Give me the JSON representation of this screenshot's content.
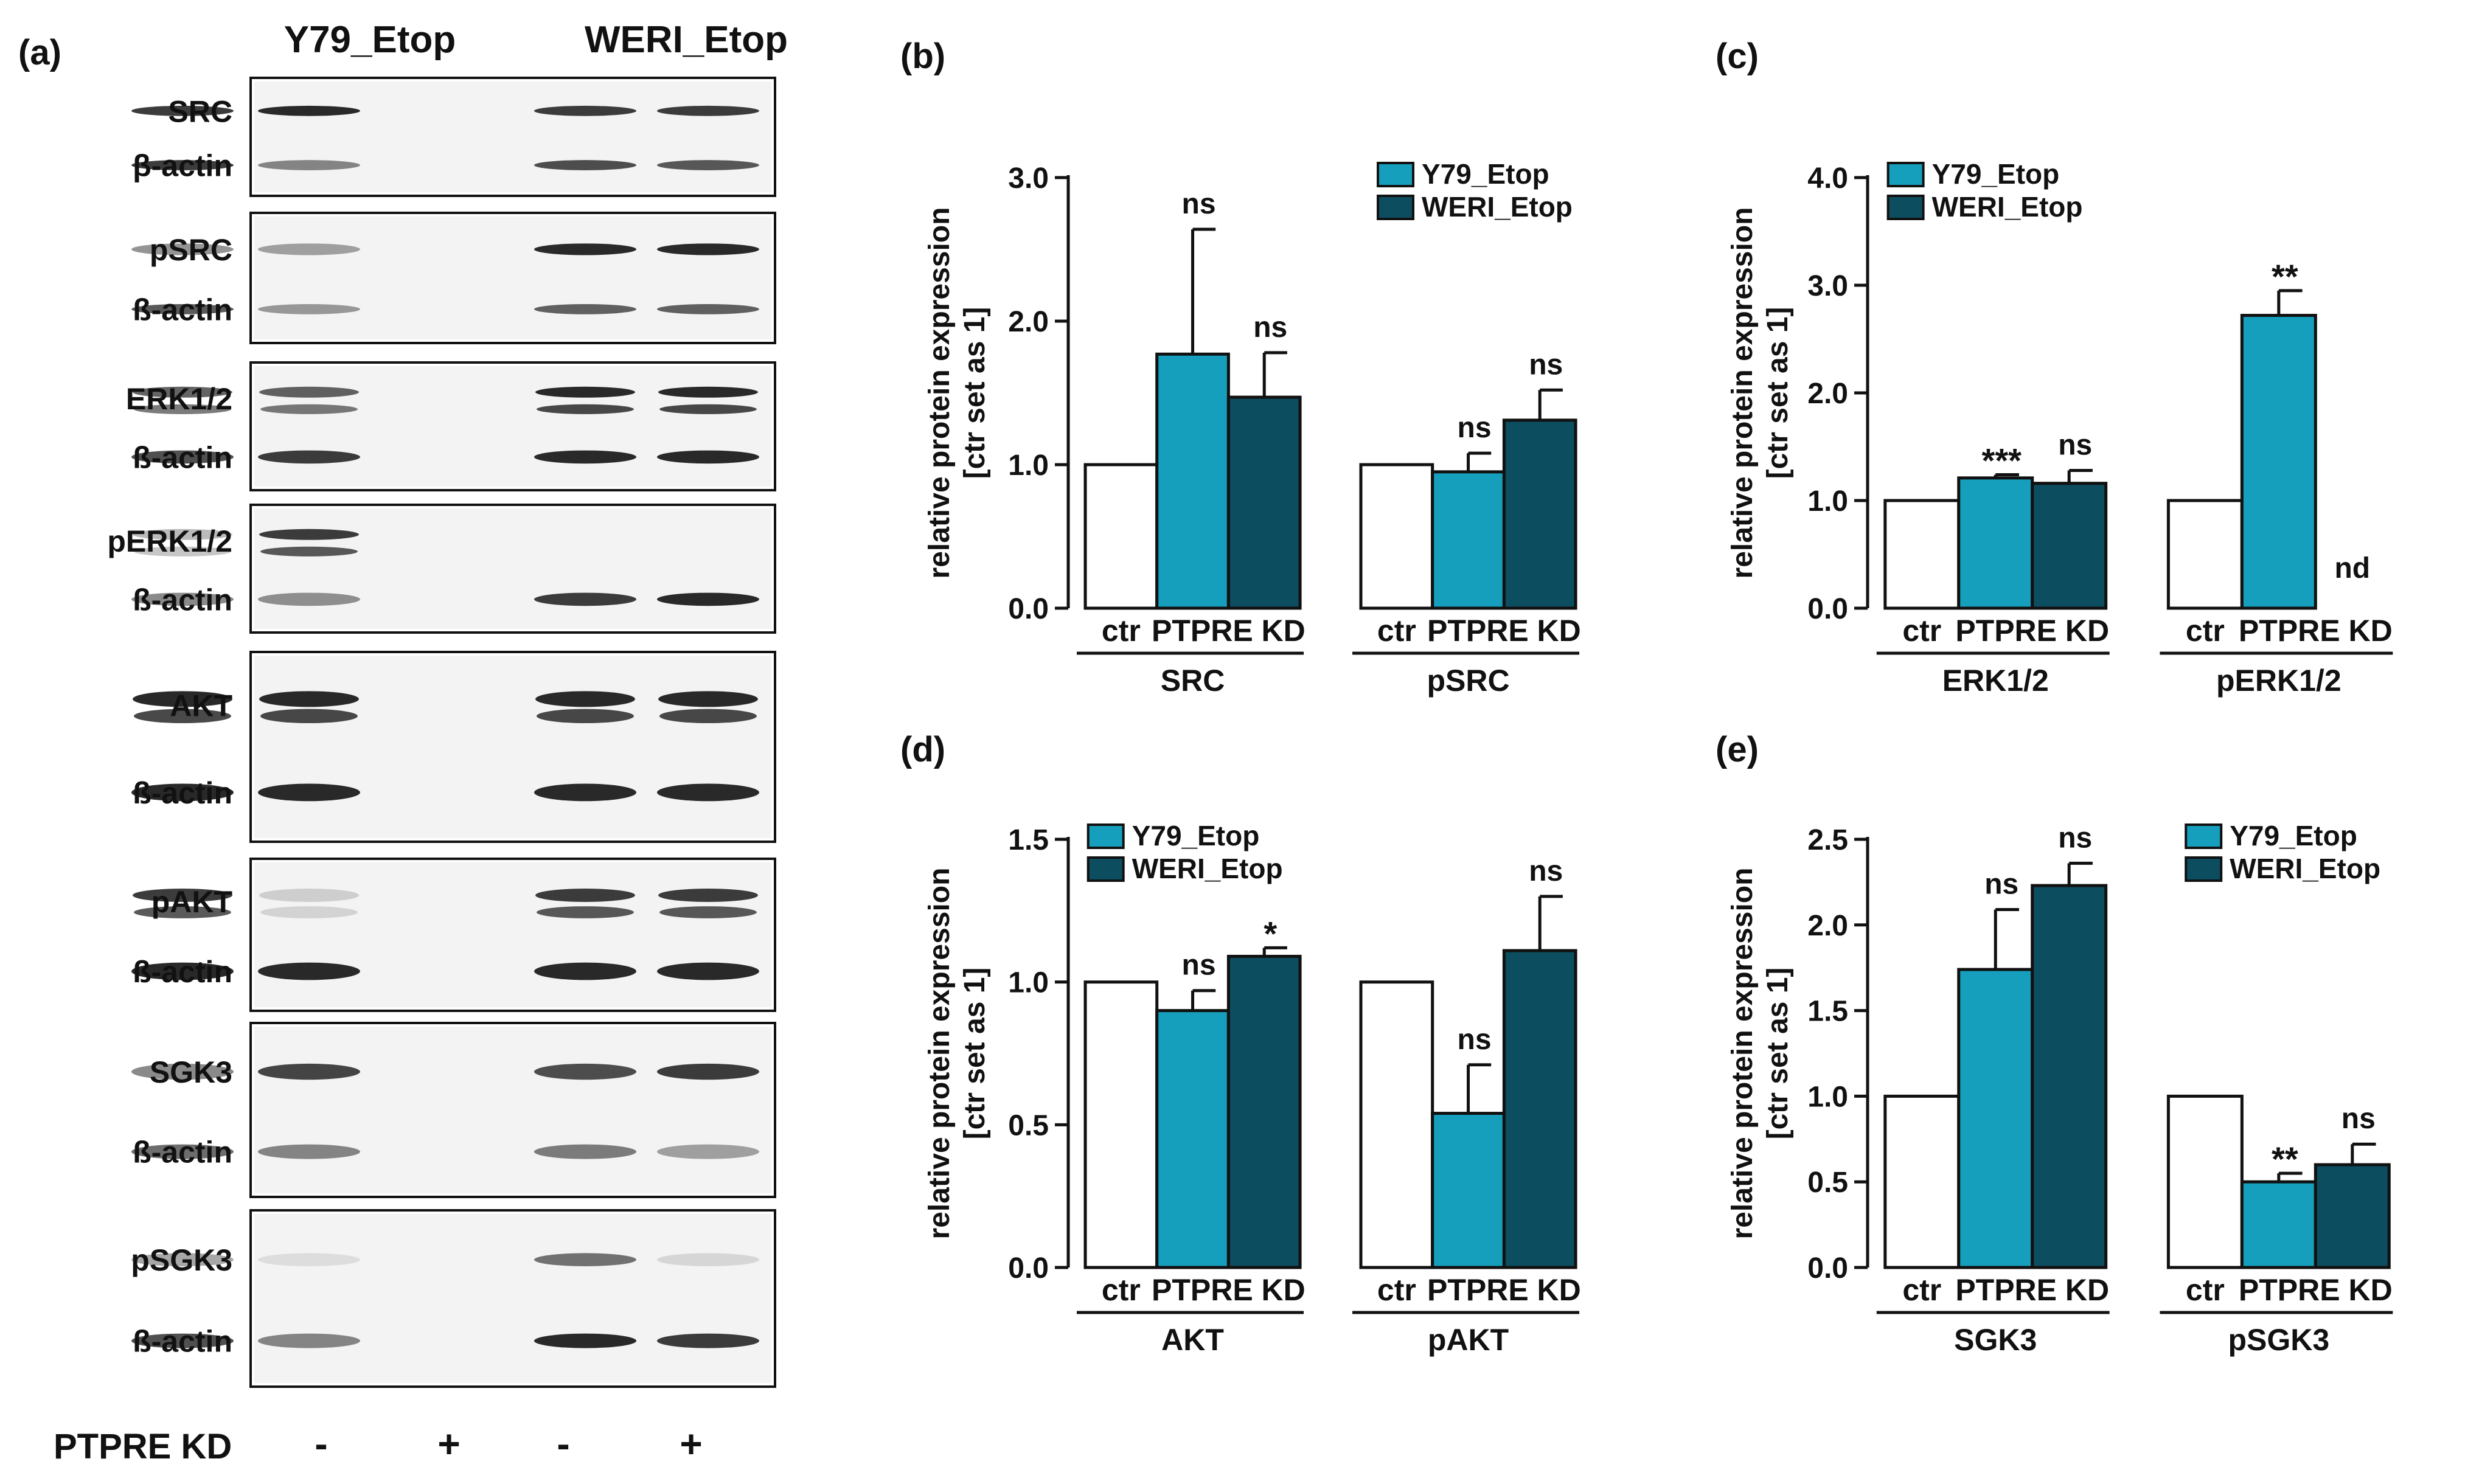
{
  "figure": {
    "colors": {
      "y79": "#169fbc",
      "weri": "#0d4d60",
      "ctr": "#ffffff",
      "stroke": "#111111"
    },
    "western_blot": {
      "panel_label": "(a)",
      "group_labels": [
        "Y79_Etop",
        "WERI_Etop"
      ],
      "boxes": [
        {
          "top": "SRC",
          "bottom": "β-actin"
        },
        {
          "top": "pSRC",
          "bottom": "ß-actin"
        },
        {
          "top": "ERK1/2",
          "bottom": "ß-actin"
        },
        {
          "top": "pERK1/2",
          "bottom": "ß-actin"
        },
        {
          "top": "AKT",
          "bottom": "ß-actin"
        },
        {
          "top": "pAKT",
          "bottom": "ß-actin"
        },
        {
          "top": "SGK3",
          "bottom": "ß-actin"
        },
        {
          "top": "pSGK3",
          "bottom": "ß-actin"
        }
      ],
      "kd_label": "PTPRE KD",
      "kd_signs": [
        "-",
        "+",
        "-",
        "+"
      ]
    }
  },
  "chart_data": [
    {
      "id": "b",
      "panel_label": "(b)",
      "type": "bar",
      "ylabel": [
        "relative protein expression",
        "[ctr set as 1]"
      ],
      "ylim": [
        0,
        3
      ],
      "yticks": [
        0,
        1,
        2,
        3
      ],
      "tick_decimals": 1,
      "legend": [
        "Y79_Etop",
        "WERI_Etop"
      ],
      "legend_position": "top-right",
      "groups": [
        {
          "name": "SRC",
          "bars": [
            {
              "series": "ctr",
              "value": 1.0,
              "err": null,
              "sig": ""
            },
            {
              "series": "Y79_Etop",
              "value": 1.77,
              "err": 0.87,
              "sig": "ns"
            },
            {
              "series": "WERI_Etop",
              "value": 1.47,
              "err": 0.31,
              "sig": "ns"
            }
          ]
        },
        {
          "name": "pSRC",
          "bars": [
            {
              "series": "ctr",
              "value": 1.0,
              "err": null,
              "sig": ""
            },
            {
              "series": "Y79_Etop",
              "value": 0.95,
              "err": 0.13,
              "sig": "ns"
            },
            {
              "series": "WERI_Etop",
              "value": 1.31,
              "err": 0.21,
              "sig": "ns"
            }
          ]
        }
      ],
      "xlabels": {
        "ctr": "ctr",
        "kd": "PTPRE KD"
      }
    },
    {
      "id": "c",
      "panel_label": "(c)",
      "type": "bar",
      "ylabel": [
        "relative protein expression",
        "[ctr set as 1]"
      ],
      "ylim": [
        0,
        4
      ],
      "yticks": [
        0,
        1,
        2,
        3,
        4
      ],
      "tick_decimals": 1,
      "legend": [
        "Y79_Etop",
        "WERI_Etop"
      ],
      "legend_position": "top-left",
      "groups": [
        {
          "name": "ERK1/2",
          "bars": [
            {
              "series": "ctr",
              "value": 1.0,
              "err": null,
              "sig": ""
            },
            {
              "series": "Y79_Etop",
              "value": 1.21,
              "err": 0.03,
              "sig": "***"
            },
            {
              "series": "WERI_Etop",
              "value": 1.16,
              "err": 0.12,
              "sig": "ns"
            }
          ]
        },
        {
          "name": "pERK1/2",
          "bars": [
            {
              "series": "ctr",
              "value": 1.0,
              "err": null,
              "sig": ""
            },
            {
              "series": "Y79_Etop",
              "value": 2.72,
              "err": 0.23,
              "sig": "**"
            },
            {
              "series": "WERI_Etop",
              "value": 0,
              "err": null,
              "sig": "nd"
            }
          ]
        }
      ],
      "xlabels": {
        "ctr": "ctr",
        "kd": "PTPRE KD"
      }
    },
    {
      "id": "d",
      "panel_label": "(d)",
      "type": "bar",
      "ylabel": [
        "relative protein expression",
        "[ctr set as 1]"
      ],
      "ylim": [
        0,
        1.5
      ],
      "yticks": [
        0,
        0.5,
        1.0,
        1.5
      ],
      "tick_decimals": 1,
      "legend": [
        "Y79_Etop",
        "WERI_Etop"
      ],
      "legend_position": "top-left",
      "groups": [
        {
          "name": "AKT",
          "bars": [
            {
              "series": "ctr",
              "value": 1.0,
              "err": null,
              "sig": ""
            },
            {
              "series": "Y79_Etop",
              "value": 0.9,
              "err": 0.07,
              "sig": "ns"
            },
            {
              "series": "WERI_Etop",
              "value": 1.09,
              "err": 0.03,
              "sig": "*"
            }
          ]
        },
        {
          "name": "pAKT",
          "bars": [
            {
              "series": "ctr",
              "value": 1.0,
              "err": null,
              "sig": ""
            },
            {
              "series": "Y79_Etop",
              "value": 0.54,
              "err": 0.17,
              "sig": "ns"
            },
            {
              "series": "WERI_Etop",
              "value": 1.11,
              "err": 0.19,
              "sig": "ns"
            }
          ]
        }
      ],
      "xlabels": {
        "ctr": "ctr",
        "kd": "PTPRE KD"
      }
    },
    {
      "id": "e",
      "panel_label": "(e)",
      "type": "bar",
      "ylabel": [
        "relative protein expression",
        "[ctr set as 1]"
      ],
      "ylim": [
        0,
        2.5
      ],
      "yticks": [
        0,
        0.5,
        1.0,
        1.5,
        2.0,
        2.5
      ],
      "tick_decimals": 1,
      "legend": [
        "Y79_Etop",
        "WERI_Etop"
      ],
      "legend_position": "top-right",
      "groups": [
        {
          "name": "SGK3",
          "bars": [
            {
              "series": "ctr",
              "value": 1.0,
              "err": null,
              "sig": ""
            },
            {
              "series": "Y79_Etop",
              "value": 1.74,
              "err": 0.35,
              "sig": "ns"
            },
            {
              "series": "WERI_Etop",
              "value": 2.23,
              "err": 0.13,
              "sig": "ns"
            }
          ]
        },
        {
          "name": "pSGK3",
          "bars": [
            {
              "series": "ctr",
              "value": 1.0,
              "err": null,
              "sig": ""
            },
            {
              "series": "Y79_Etop",
              "value": 0.5,
              "err": 0.05,
              "sig": "**"
            },
            {
              "series": "WERI_Etop",
              "value": 0.6,
              "err": 0.12,
              "sig": "ns"
            }
          ]
        }
      ],
      "xlabels": {
        "ctr": "ctr",
        "kd": "PTPRE KD"
      }
    }
  ]
}
